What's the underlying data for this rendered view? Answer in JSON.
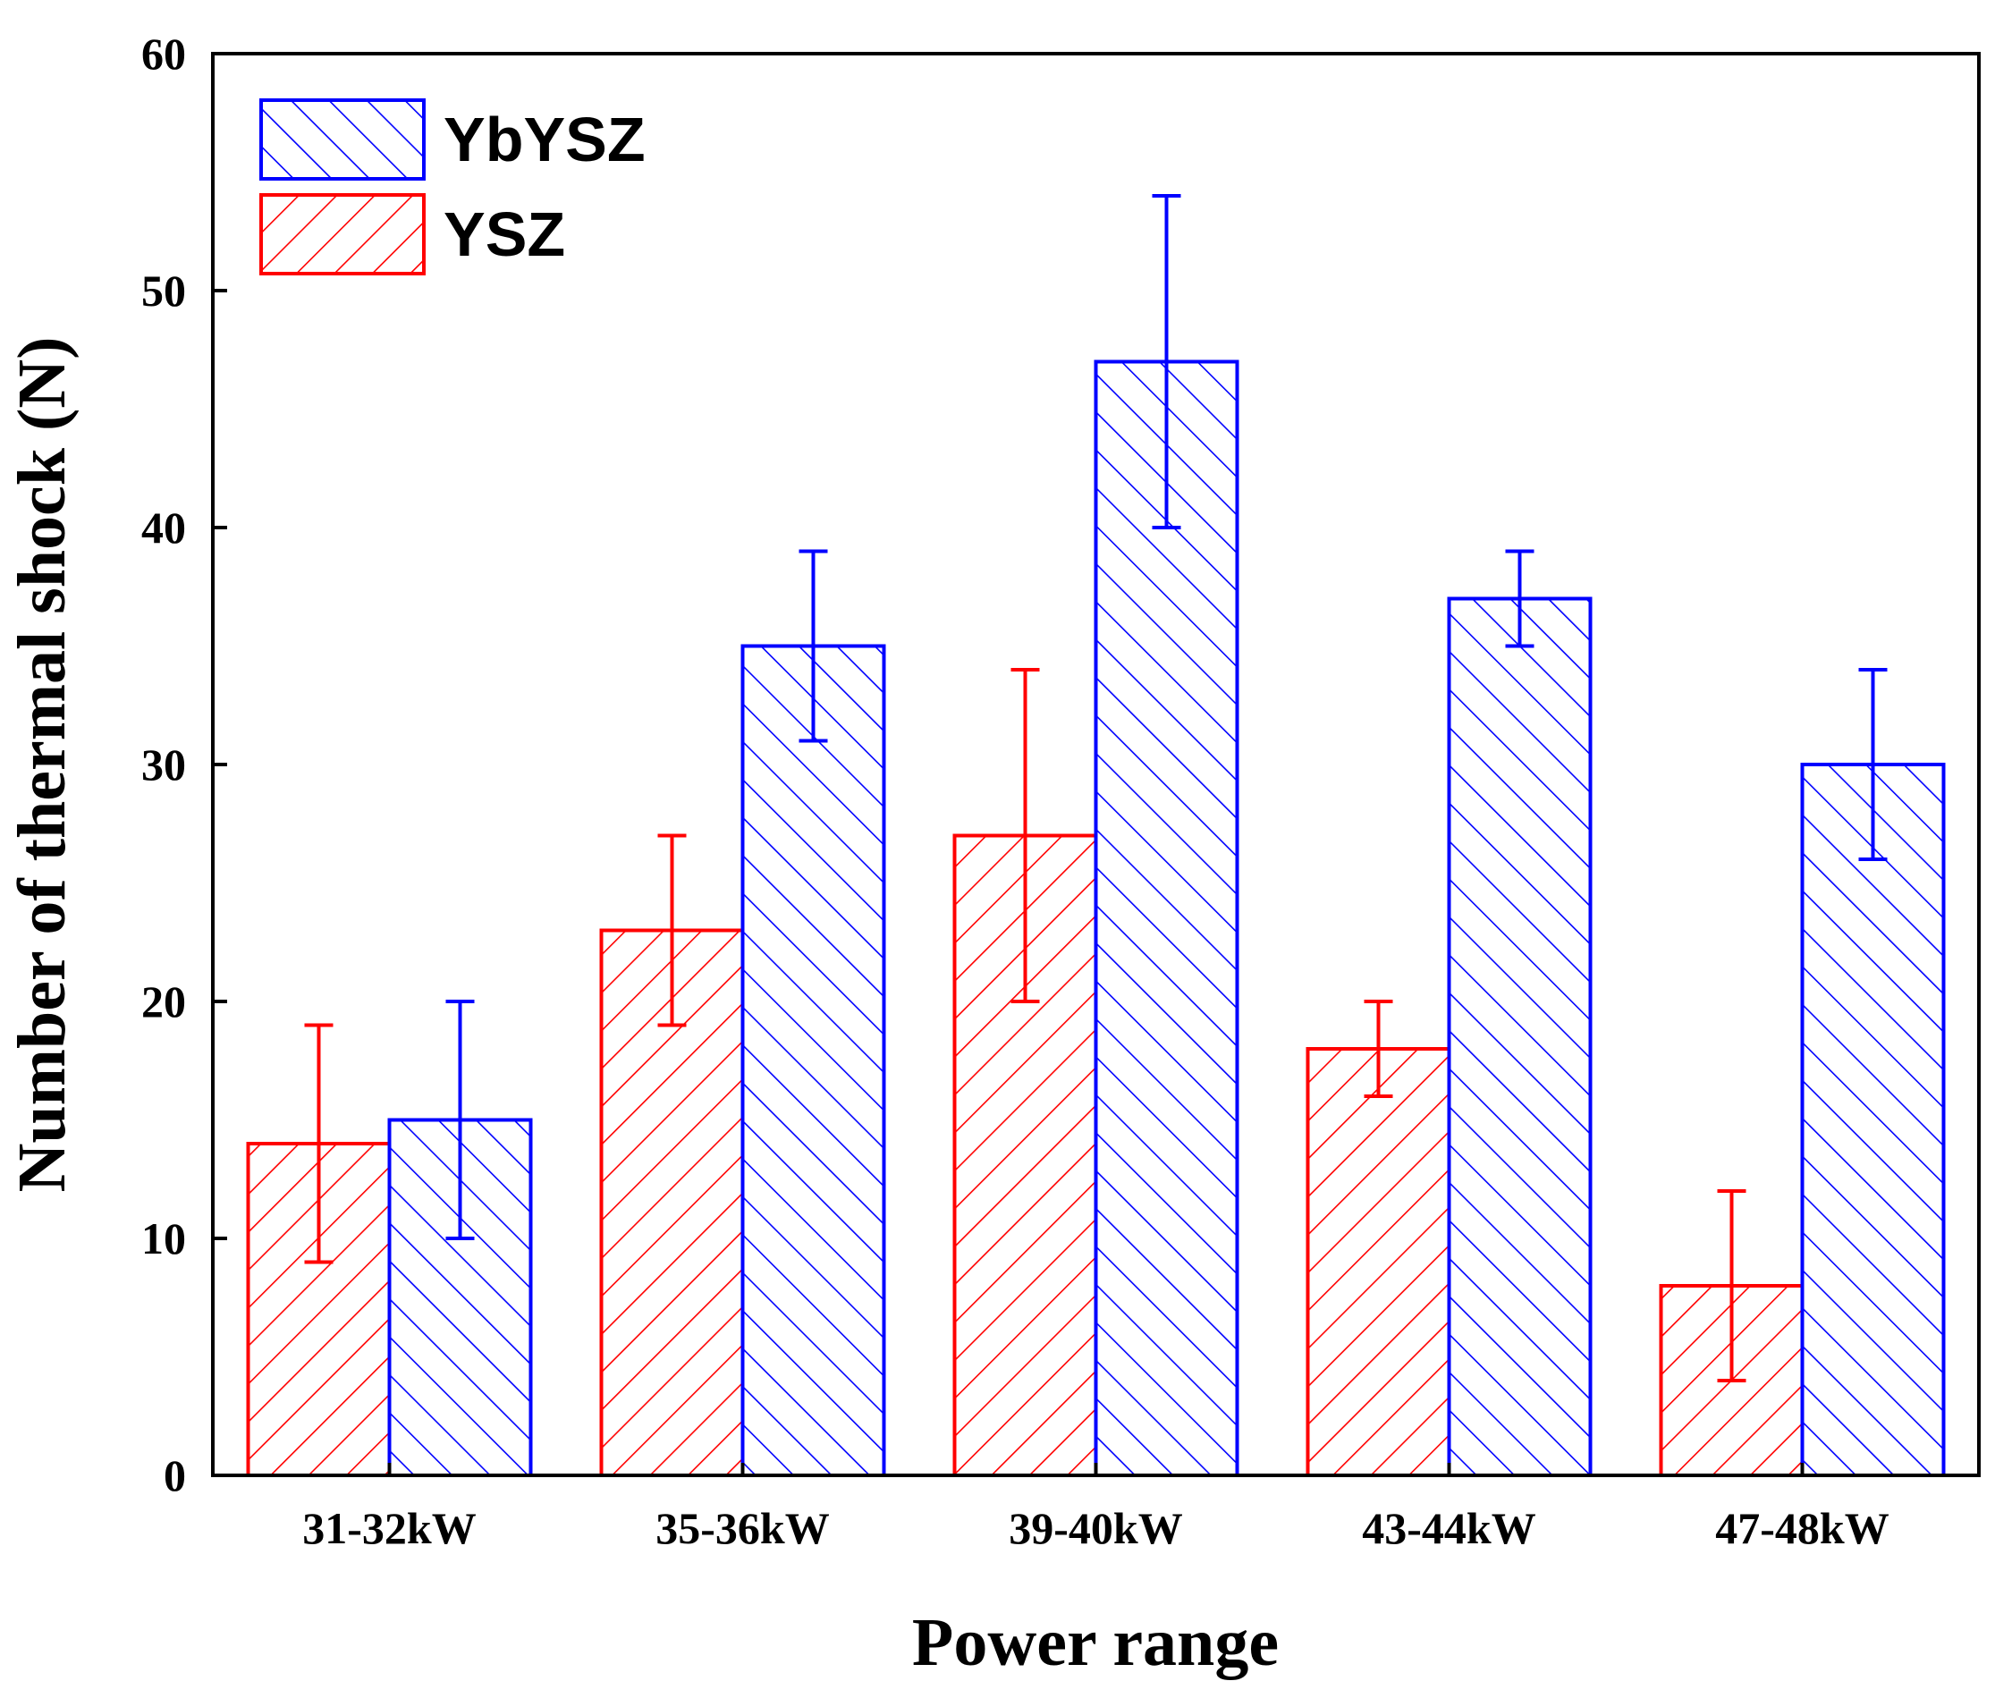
{
  "chart_data": {
    "type": "bar",
    "title": "",
    "xlabel": "Power range",
    "ylabel": "Number of thermal shock (N)",
    "categories": [
      "31-32kW",
      "35-36kW",
      "39-40kW",
      "43-44kW",
      "47-48kW"
    ],
    "ylim": [
      0,
      60
    ],
    "yticks": [
      "0",
      "10",
      "20",
      "30",
      "40",
      "50",
      "60"
    ],
    "legend_position": "top-left",
    "series": [
      {
        "name": "YSZ",
        "color": "#ff0000",
        "hatch": "forward",
        "values": [
          14,
          23,
          27,
          18,
          8
        ],
        "err_low": [
          9,
          19,
          20,
          16,
          4
        ],
        "err_high": [
          19,
          27,
          34,
          20,
          12
        ]
      },
      {
        "name": "YbYSZ",
        "color": "#0000ff",
        "hatch": "back",
        "values": [
          15,
          35,
          47,
          37,
          30
        ],
        "err_low": [
          10,
          31,
          40,
          35,
          26
        ],
        "err_high": [
          20,
          39,
          54,
          39,
          34
        ]
      }
    ],
    "legend_order": [
      "YbYSZ",
      "YSZ"
    ]
  }
}
